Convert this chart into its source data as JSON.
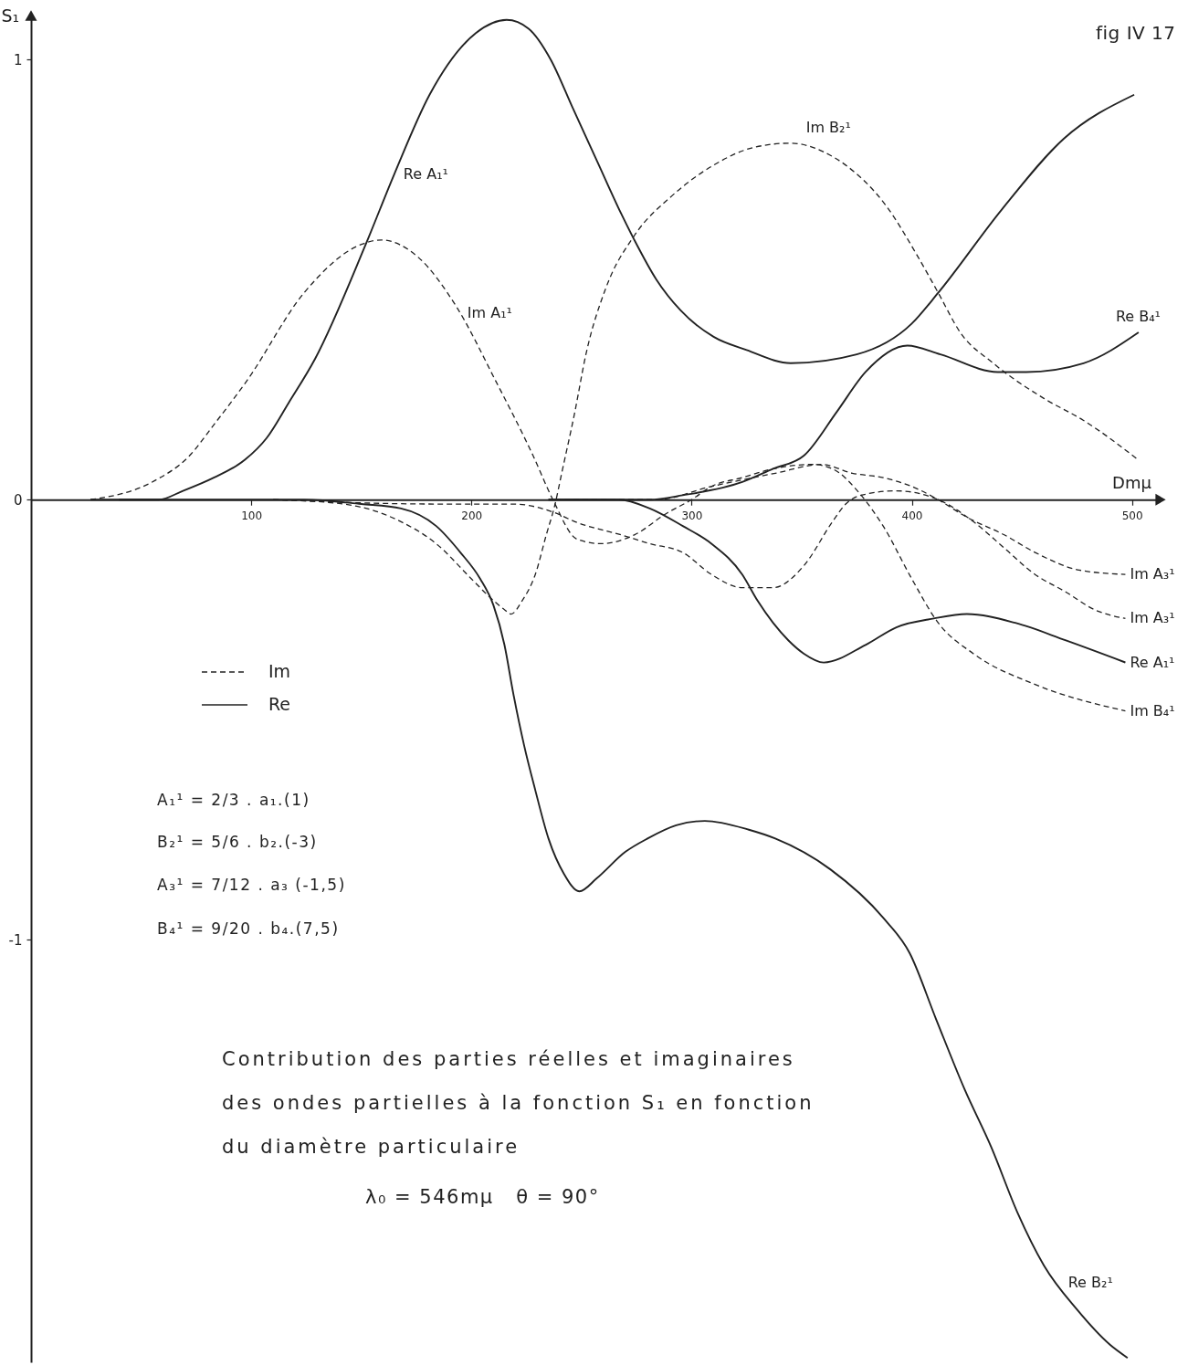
{
  "chart_data": {
    "type": "line",
    "xlabel": "Dmμ",
    "ylabel": "S₁",
    "xlim": [
      0,
      513
    ],
    "ylim": [
      -1.96,
      1.1
    ],
    "xticks": [
      100,
      200,
      300,
      400,
      500
    ],
    "yticks": [
      -1,
      0,
      1
    ],
    "legend": "left",
    "series": [
      {
        "name": "Im",
        "color": "#222222",
        "line_style": "dashed",
        "x": [
          27,
          55,
          72,
          83,
          98,
          124,
          150,
          159,
          176,
          193,
          211,
          228,
          237,
          248,
          259,
          274,
          289,
          300,
          309,
          323,
          337,
          355,
          364,
          377,
          387,
          400,
          412,
          428,
          456,
          497
        ],
        "values": [
          0,
          0.04,
          0.1,
          0.17,
          0.27,
          0.47,
          0.58,
          0.59,
          0.55,
          0.44,
          0.27,
          0.1,
          0,
          -0.09,
          -0.1,
          -0.08,
          -0.03,
          0,
          0.03,
          0.05,
          0.07,
          0.08,
          0.07,
          0.01,
          -0.06,
          -0.18,
          -0.28,
          -0.35,
          -0.42,
          -0.48
        ]
      },
      {
        "color": "#222222",
        "line_style": "dashed",
        "x": [
          110,
          142,
          168,
          184,
          200,
          208,
          215,
          218,
          223,
          229,
          234,
          238,
          241,
          247,
          252,
          261,
          274,
          291,
          310,
          328,
          345,
          360,
          370,
          388,
          403,
          412,
          422,
          437,
          460,
          478,
          503
        ],
        "values": [
          0,
          -0.01,
          -0.05,
          -0.1,
          -0.18,
          -0.22,
          -0.25,
          -0.26,
          -0.23,
          -0.17,
          -0.08,
          -0.01,
          0.06,
          0.2,
          0.33,
          0.48,
          0.6,
          0.69,
          0.76,
          0.8,
          0.81,
          0.79,
          0.76,
          0.67,
          0.55,
          0.47,
          0.38,
          0.31,
          0.23,
          0.18,
          0.09
        ]
      },
      {
        "color": "#222222",
        "line_style": "dashed",
        "x": [
          110,
          185,
          219,
          238,
          247,
          268,
          281,
          296,
          309,
          323,
          331,
          337,
          351,
          364,
          370,
          377,
          393,
          412,
          428,
          442,
          456,
          470,
          483,
          497
        ],
        "values": [
          0,
          -0.01,
          -0.01,
          -0.03,
          -0.05,
          -0.08,
          -0.1,
          -0.12,
          -0.17,
          -0.2,
          -0.2,
          -0.2,
          -0.15,
          -0.05,
          -0.01,
          0.01,
          0.02,
          0,
          -0.05,
          -0.11,
          -0.17,
          -0.21,
          -0.25,
          -0.27
        ]
      },
      {
        "color": "#222222",
        "line_style": "dashed",
        "x": [
          238,
          284,
          309,
          338,
          359,
          373,
          387,
          400,
          412,
          425,
          442,
          456,
          476,
          497
        ],
        "values": [
          0,
          0,
          0.03,
          0.06,
          0.08,
          0.06,
          0.05,
          0.03,
          0,
          -0.04,
          -0.08,
          -0.12,
          -0.16,
          -0.17
        ]
      },
      {
        "name": "Re",
        "color": "#222222",
        "line_style": "solid",
        "x": [
          27,
          58,
          69,
          83,
          97,
          107,
          117,
          129,
          152,
          165,
          181,
          202,
          216,
          226,
          236,
          246,
          257,
          268,
          274,
          284,
          295,
          310,
          325,
          345,
          375,
          400,
          412,
          441,
          469,
          501
        ],
        "values": [
          0,
          0,
          0.02,
          0.05,
          0.09,
          0.14,
          0.22,
          0.32,
          0.58,
          0.74,
          0.92,
          1.06,
          1.09,
          1.07,
          1,
          0.89,
          0.77,
          0.65,
          0.59,
          0.5,
          0.43,
          0.37,
          0.34,
          0.31,
          0.33,
          0.4,
          0.47,
          0.66,
          0.82,
          0.92
        ]
      },
      {
        "color": "#222222",
        "line_style": "solid",
        "x": [
          40,
          124,
          150,
          168,
          184,
          195,
          204,
          210,
          215,
          219,
          224,
          229,
          235,
          242,
          249,
          257,
          270,
          280,
          293,
          306,
          326,
          338,
          363,
          387,
          399,
          411,
          424,
          436,
          448,
          460,
          475,
          490,
          498
        ],
        "values": [
          0,
          0,
          -0.01,
          -0.02,
          -0.06,
          -0.12,
          -0.18,
          -0.24,
          -0.33,
          -0.44,
          -0.56,
          -0.66,
          -0.77,
          -0.85,
          -0.89,
          -0.86,
          -0.8,
          -0.77,
          -0.74,
          -0.73,
          -0.75,
          -0.77,
          -0.84,
          -0.95,
          -1.03,
          -1.18,
          -1.34,
          -1.47,
          -1.62,
          -1.74,
          -1.84,
          -1.92,
          -1.95
        ]
      },
      {
        "color": "#222222",
        "line_style": "solid",
        "x": [
          235,
          281,
          296,
          323,
          337,
          351,
          366,
          379,
          398,
          413,
          439,
          452,
          478,
          503
        ],
        "values": [
          0,
          0,
          0.01,
          0.04,
          0.07,
          0.1,
          0.2,
          0.29,
          0.35,
          0.33,
          0.29,
          0.29,
          0.31,
          0.38
        ]
      },
      {
        "color": "#222222",
        "line_style": "solid",
        "x": [
          235,
          267,
          281,
          296,
          309,
          323,
          330,
          337,
          344,
          351,
          360,
          379,
          393,
          410,
          425,
          447,
          470,
          497
        ],
        "values": [
          0,
          0,
          -0.02,
          -0.06,
          -0.1,
          -0.17,
          -0.23,
          -0.28,
          -0.32,
          -0.35,
          -0.37,
          -0.33,
          -0.29,
          -0.27,
          -0.26,
          -0.28,
          -0.32,
          -0.37
        ]
      }
    ],
    "annotations": [
      {
        "text": "Re A₁¹",
        "x": 165,
        "y": 0.74
      },
      {
        "text": "Im A₁¹",
        "x": 194,
        "y": 0.44
      },
      {
        "text": "Im B₂¹",
        "x": 364,
        "y": 0.78
      },
      {
        "text": "Re B₄¹",
        "x": 503,
        "y": 0.38
      },
      {
        "text": "Im A₃¹",
        "x": 497,
        "y": -0.17
      },
      {
        "text": "Im A₃¹",
        "x": 497,
        "y": -0.27
      },
      {
        "text": "Re A₁¹",
        "x": 497,
        "y": -0.37
      },
      {
        "text": "Im B₄¹",
        "x": 497,
        "y": -0.48
      },
      {
        "text": "Re B₂¹",
        "x": 466,
        "y": -1.78
      },
      "fig IV 17",
      "A₁¹ = 2/3 . a₁.(1)",
      "B₂¹ = 5/6 . b₂.(-3)",
      "A₃¹ = 7/12 . a₃ (-1,5)",
      "B₄¹ = 9/20 . b₄.(7,5)",
      "Contribution des parties réelles et imaginaires",
      "des ondes partielles à la fonction S₁ en fonction",
      "du diamètre particulaire",
      "λ₀ = 546mμ   θ = 90°"
    ]
  }
}
